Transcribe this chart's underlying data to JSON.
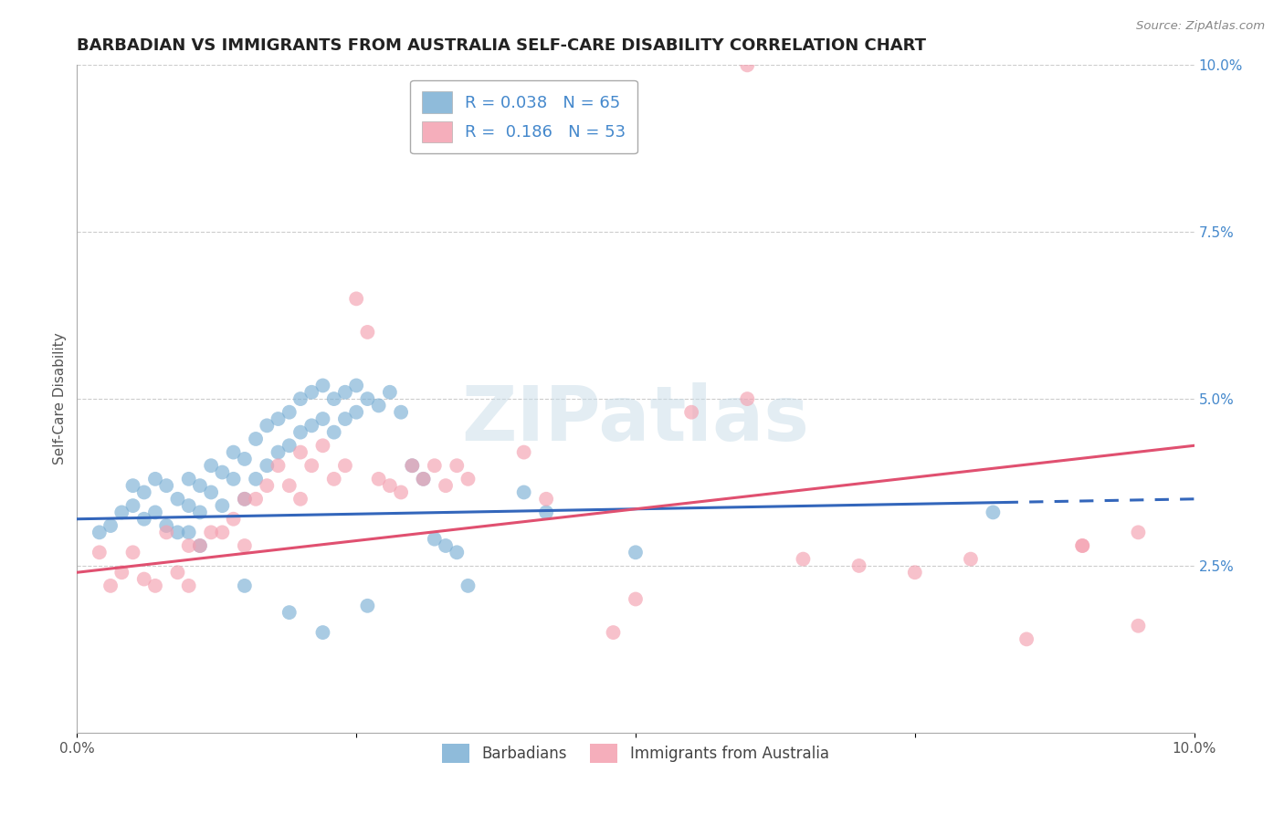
{
  "title": "BARBADIAN VS IMMIGRANTS FROM AUSTRALIA SELF-CARE DISABILITY CORRELATION CHART",
  "source": "Source: ZipAtlas.com",
  "ylabel": "Self-Care Disability",
  "watermark": "ZIPatlas",
  "xmin": 0.0,
  "xmax": 0.1,
  "ymin": 0.0,
  "ymax": 0.1,
  "yticks_right": [
    0.025,
    0.05,
    0.075,
    0.1
  ],
  "ytick_labels_right": [
    "2.5%",
    "5.0%",
    "7.5%",
    "10.0%"
  ],
  "xticks": [
    0.0,
    0.025,
    0.05,
    0.075,
    0.1
  ],
  "xtick_labels": [
    "0.0%",
    "",
    "",
    "",
    "10.0%"
  ],
  "series_blue": {
    "label": "Barbadians",
    "color": "#7bafd4",
    "x": [
      0.002,
      0.003,
      0.004,
      0.005,
      0.005,
      0.006,
      0.006,
      0.007,
      0.007,
      0.008,
      0.008,
      0.009,
      0.009,
      0.01,
      0.01,
      0.01,
      0.011,
      0.011,
      0.012,
      0.012,
      0.013,
      0.013,
      0.014,
      0.014,
      0.015,
      0.015,
      0.016,
      0.016,
      0.017,
      0.017,
      0.018,
      0.018,
      0.019,
      0.019,
      0.02,
      0.02,
      0.021,
      0.021,
      0.022,
      0.022,
      0.023,
      0.023,
      0.024,
      0.024,
      0.025,
      0.025,
      0.026,
      0.027,
      0.028,
      0.029,
      0.03,
      0.031,
      0.032,
      0.033,
      0.034,
      0.04,
      0.042,
      0.05,
      0.082,
      0.011,
      0.015,
      0.019,
      0.022,
      0.026,
      0.035
    ],
    "y": [
      0.03,
      0.031,
      0.033,
      0.037,
      0.034,
      0.036,
      0.032,
      0.038,
      0.033,
      0.037,
      0.031,
      0.035,
      0.03,
      0.038,
      0.034,
      0.03,
      0.037,
      0.033,
      0.04,
      0.036,
      0.039,
      0.034,
      0.042,
      0.038,
      0.041,
      0.035,
      0.044,
      0.038,
      0.046,
      0.04,
      0.047,
      0.042,
      0.048,
      0.043,
      0.05,
      0.045,
      0.051,
      0.046,
      0.052,
      0.047,
      0.05,
      0.045,
      0.051,
      0.047,
      0.052,
      0.048,
      0.05,
      0.049,
      0.051,
      0.048,
      0.04,
      0.038,
      0.029,
      0.028,
      0.027,
      0.036,
      0.033,
      0.027,
      0.033,
      0.028,
      0.022,
      0.018,
      0.015,
      0.019,
      0.022
    ]
  },
  "series_pink": {
    "label": "Immigrants from Australia",
    "color": "#f4a0b0",
    "x": [
      0.002,
      0.003,
      0.004,
      0.005,
      0.006,
      0.007,
      0.008,
      0.009,
      0.01,
      0.01,
      0.011,
      0.012,
      0.013,
      0.014,
      0.015,
      0.015,
      0.016,
      0.017,
      0.018,
      0.019,
      0.02,
      0.02,
      0.021,
      0.022,
      0.023,
      0.024,
      0.025,
      0.026,
      0.027,
      0.028,
      0.029,
      0.03,
      0.031,
      0.032,
      0.033,
      0.034,
      0.035,
      0.04,
      0.042,
      0.048,
      0.055,
      0.06,
      0.065,
      0.07,
      0.075,
      0.08,
      0.085,
      0.09,
      0.05,
      0.06,
      0.09,
      0.095,
      0.095
    ],
    "y": [
      0.027,
      0.022,
      0.024,
      0.027,
      0.023,
      0.022,
      0.03,
      0.024,
      0.028,
      0.022,
      0.028,
      0.03,
      0.03,
      0.032,
      0.035,
      0.028,
      0.035,
      0.037,
      0.04,
      0.037,
      0.042,
      0.035,
      0.04,
      0.043,
      0.038,
      0.04,
      0.065,
      0.06,
      0.038,
      0.037,
      0.036,
      0.04,
      0.038,
      0.04,
      0.037,
      0.04,
      0.038,
      0.042,
      0.035,
      0.015,
      0.048,
      0.05,
      0.026,
      0.025,
      0.024,
      0.026,
      0.014,
      0.028,
      0.02,
      0.1,
      0.028,
      0.03,
      0.016
    ]
  },
  "blue_line": {
    "x_start": 0.0,
    "x_end": 0.1,
    "y_start": 0.032,
    "y_end": 0.035,
    "color": "#3366bb",
    "dashed_from": 0.083
  },
  "pink_line": {
    "x_start": 0.0,
    "x_end": 0.1,
    "y_start": 0.024,
    "y_end": 0.043,
    "color": "#e05070"
  },
  "bg_color": "#ffffff",
  "grid_color": "#cccccc",
  "title_color": "#222222",
  "title_fontsize": 13,
  "axis_label_color": "#555555",
  "right_tick_color": "#4488cc",
  "source_color": "#888888",
  "legend_R_color": "#4488cc",
  "legend_N_color": "#4488cc",
  "watermark_color": "#c8dce8",
  "watermark_alpha": 0.5
}
